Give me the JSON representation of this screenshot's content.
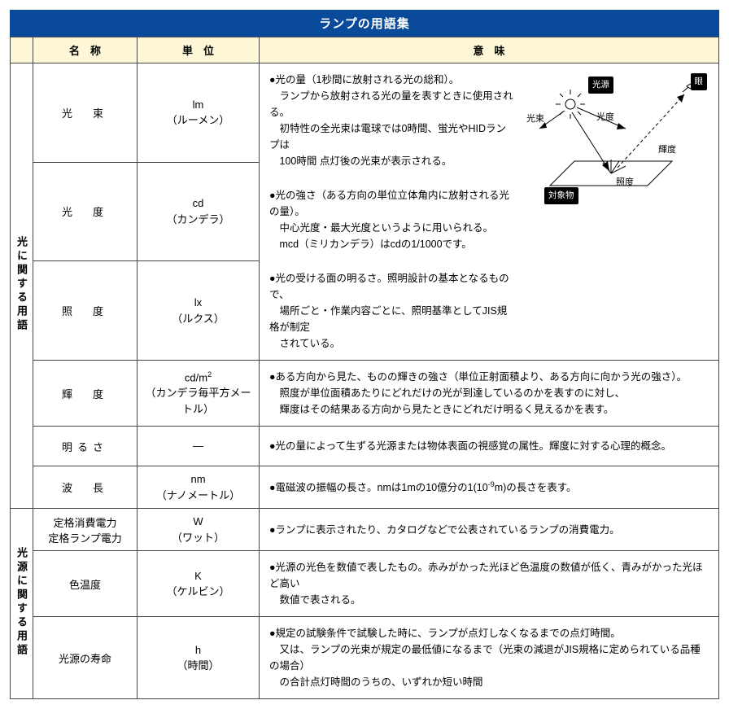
{
  "title": "ランプの用語集",
  "headers": {
    "name": "名　称",
    "unit": "単　位",
    "meaning": "意　味"
  },
  "groups": [
    {
      "label": "光に関する用語"
    },
    {
      "label": "光源に関する用語"
    }
  ],
  "diagram": {
    "source": "光源",
    "eye": "眼",
    "flux": "光束",
    "intensity": "光度",
    "luminance": "輝度",
    "illuminance": "照度",
    "target": "対象物",
    "colors": {
      "line": "#000000",
      "dash": "#000000"
    }
  },
  "rows": [
    {
      "name": "光　束",
      "unit_symbol": "lm",
      "unit_jp": "（ルーメン）",
      "meaning": "●光の量（1秒間に放射される光の総和）。\n　ランプから放射される光の量を表すときに使用される。\n　初特性の全光束は電球では0時間、蛍光やHIDランプは\n　100時間 点灯後の光束が表示される。",
      "diagram": true
    },
    {
      "name": "光　度",
      "unit_symbol": "cd",
      "unit_jp": "（カンデラ）",
      "meaning": "●光の強さ（ある方向の単位立体角内に放射される光の量）。\n　中心光度・最大光度というように用いられる。\n　mcd（ミリカンデラ）はcdの1/1000です。"
    },
    {
      "name": "照　度",
      "unit_symbol": "lx",
      "unit_jp": "（ルクス）",
      "meaning": "●光の受ける面の明るさ。照明設計の基本となるもので、\n　場所ごと・作業内容ごとに、照明基準としてJIS規格が制定\n　されている。"
    },
    {
      "name": "輝　度",
      "unit_symbol_html": "cd/m<sup>2</sup>",
      "unit_jp": "（カンデラ毎平方メートル）",
      "meaning": "●ある方向から見た、ものの輝きの強さ（単位正射面積より、ある方向に向かう光の強さ）。\n　照度が単位面積あたりにどれだけの光が到達しているのかを表すのに対し、\n　輝度はその結果ある方向から見たときにどれだけ明るく見えるかを表す。"
    },
    {
      "name": "明るさ",
      "unit_symbol": "―",
      "unit_jp": "",
      "meaning": "●光の量によって生ずる光源または物体表面の視感覚の属性。輝度に対する心理的概念。"
    },
    {
      "name": "波　長",
      "unit_symbol": "nm",
      "unit_jp": "（ナノメートル）",
      "meaning_html": "●電磁波の振幅の長さ。nmは1mの10億分の1(10<sup>-9</sup>m)の長さを表す。"
    },
    {
      "name_multi": "定格消費電力\n定格ランプ電力",
      "unit_symbol": "W",
      "unit_jp": "（ワット）",
      "meaning": "●ランプに表示されたり、カタログなどで公表されているランプの消費電力。"
    },
    {
      "name": "色温度",
      "unit_symbol": "K",
      "unit_jp": "（ケルビン）",
      "meaning": "●光源の光色を数値で表したもの。赤みがかった光ほど色温度の数値が低く、青みがかった光ほど高い\n　数値で表される。"
    },
    {
      "name": "光源の寿命",
      "unit_symbol": "h",
      "unit_jp": "（時間）",
      "meaning": "●規定の試験条件で試験した時に、ランプが点灯しなくなるまでの点灯時間。\n　又は、ランプの光束が規定の最低値になるまで（光束の減退がJIS規格に定められている品種の場合）\n　の合計点灯時間のうちの、いずれか短い時間"
    }
  ]
}
